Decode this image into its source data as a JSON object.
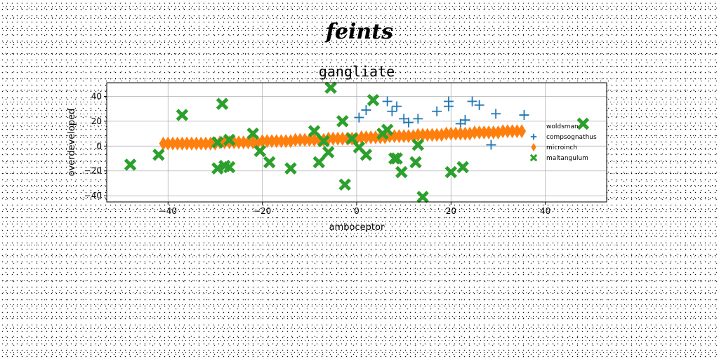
{
  "figure_title": "feints",
  "chart_data": {
    "type": "scatter",
    "title": "gangliate",
    "xlabel": "amboceptor",
    "ylabel": "overdeveloped",
    "xlim": [
      -53,
      53
    ],
    "ylim": [
      -45,
      51
    ],
    "xticks": [
      -40,
      -20,
      0,
      20,
      40
    ],
    "yticks": [
      -40,
      -20,
      0,
      20,
      40
    ],
    "grid": true,
    "legend_position": "right",
    "series": [
      {
        "name": "woldsman",
        "marker": "none",
        "color": "#1f77b4",
        "points": []
      },
      {
        "name": "compsognathus",
        "marker": "plus",
        "color": "#1f77b4",
        "points": [
          [
            0.5,
            23
          ],
          [
            2,
            29
          ],
          [
            6.5,
            36
          ],
          [
            7.5,
            28
          ],
          [
            8.5,
            32
          ],
          [
            10,
            22
          ],
          [
            11,
            19
          ],
          [
            13,
            22
          ],
          [
            17,
            28
          ],
          [
            19.5,
            32
          ],
          [
            19.5,
            36
          ],
          [
            22,
            18
          ],
          [
            23,
            21
          ],
          [
            24.5,
            36
          ],
          [
            26,
            33
          ],
          [
            28.5,
            1
          ],
          [
            29.5,
            26
          ],
          [
            35.5,
            25
          ]
        ]
      },
      {
        "name": "microinch",
        "marker": "diamond",
        "color": "#ff7f0e",
        "points": [
          [
            -41,
            2
          ],
          [
            -40,
            2
          ],
          [
            -39,
            2
          ],
          [
            -38,
            2
          ],
          [
            -37,
            2
          ],
          [
            -36,
            2
          ],
          [
            -35,
            2
          ],
          [
            -34,
            2
          ],
          [
            -33,
            2
          ],
          [
            -32,
            2
          ],
          [
            -31,
            2
          ],
          [
            -30,
            2
          ],
          [
            -29,
            3
          ],
          [
            -28,
            3
          ],
          [
            -27,
            3
          ],
          [
            -26,
            3
          ],
          [
            -25,
            3
          ],
          [
            -24,
            3
          ],
          [
            -23,
            3
          ],
          [
            -22,
            3
          ],
          [
            -21,
            3
          ],
          [
            -20,
            4
          ],
          [
            -19,
            4
          ],
          [
            -18,
            4
          ],
          [
            -17,
            4
          ],
          [
            -16,
            4
          ],
          [
            -15,
            4
          ],
          [
            -14,
            4
          ],
          [
            -13,
            5
          ],
          [
            -12,
            5
          ],
          [
            -11,
            5
          ],
          [
            -10,
            5
          ],
          [
            -9,
            5
          ],
          [
            -8,
            5
          ],
          [
            -7,
            5
          ],
          [
            -6,
            6
          ],
          [
            -5,
            6
          ],
          [
            -4,
            6
          ],
          [
            -3,
            6
          ],
          [
            -2,
            6
          ],
          [
            -1,
            6
          ],
          [
            0,
            6
          ],
          [
            1,
            7
          ],
          [
            2,
            7
          ],
          [
            3,
            7
          ],
          [
            4,
            7
          ],
          [
            5,
            7
          ],
          [
            6,
            7
          ],
          [
            7,
            8
          ],
          [
            8,
            8
          ],
          [
            9,
            8
          ],
          [
            10,
            8
          ],
          [
            11,
            8
          ],
          [
            12,
            8
          ],
          [
            13,
            9
          ],
          [
            14,
            9
          ],
          [
            15,
            9
          ],
          [
            16,
            9
          ],
          [
            17,
            9
          ],
          [
            18,
            9
          ],
          [
            19,
            10
          ],
          [
            20,
            10
          ],
          [
            21,
            10
          ],
          [
            22,
            10
          ],
          [
            23,
            10
          ],
          [
            24,
            10
          ],
          [
            25,
            11
          ],
          [
            26,
            11
          ],
          [
            27,
            11
          ],
          [
            28,
            11
          ],
          [
            29,
            11
          ],
          [
            30,
            11
          ],
          [
            31,
            12
          ],
          [
            32,
            12
          ],
          [
            33,
            12
          ],
          [
            34,
            12
          ],
          [
            35,
            12
          ]
        ]
      },
      {
        "name": "maltangulum",
        "marker": "x",
        "color": "#2ca02c",
        "points": [
          [
            -48,
            -15
          ],
          [
            -42,
            -7
          ],
          [
            -37,
            25
          ],
          [
            -29.5,
            -18
          ],
          [
            -29.5,
            3
          ],
          [
            -28.5,
            34
          ],
          [
            -28,
            -16
          ],
          [
            -27,
            -17
          ],
          [
            -27,
            5
          ],
          [
            -22,
            10
          ],
          [
            -20.5,
            -4
          ],
          [
            -18.5,
            -13
          ],
          [
            -14,
            -18
          ],
          [
            -9,
            12
          ],
          [
            -8,
            -13
          ],
          [
            -7,
            4
          ],
          [
            -6,
            -5
          ],
          [
            -5.5,
            47
          ],
          [
            -3,
            20
          ],
          [
            -2.5,
            -31
          ],
          [
            -1,
            6
          ],
          [
            0.5,
            -1
          ],
          [
            2,
            -7
          ],
          [
            3.5,
            37
          ],
          [
            5.5,
            10
          ],
          [
            6.5,
            13
          ],
          [
            8,
            -10
          ],
          [
            8.5,
            -10
          ],
          [
            9.5,
            -21
          ],
          [
            12.5,
            -13
          ],
          [
            13,
            1
          ],
          [
            14,
            -41
          ],
          [
            20,
            -21
          ],
          [
            22.5,
            -17
          ],
          [
            48,
            18
          ]
        ]
      }
    ]
  }
}
